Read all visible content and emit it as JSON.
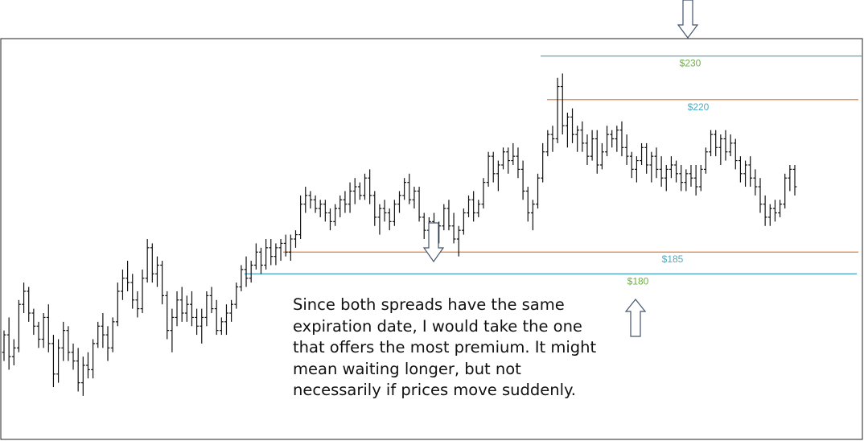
{
  "chart_data": {
    "type": "ohlc",
    "title": "",
    "xlabel": "",
    "ylabel": "",
    "ylim": [
      142,
      234
    ],
    "grid": false,
    "legend": "none",
    "bar_color": "#111111",
    "series": [
      {
        "values": [
          [
            162,
            167,
            160,
            166
          ],
          [
            166,
            170,
            158,
            161
          ],
          [
            161,
            165,
            159,
            163
          ],
          [
            163,
            174,
            162,
            173
          ],
          [
            173,
            178,
            171,
            176
          ],
          [
            176,
            177,
            169,
            171
          ],
          [
            171,
            172,
            166,
            168
          ],
          [
            168,
            169,
            163,
            165
          ],
          [
            165,
            171,
            163,
            170
          ],
          [
            170,
            173,
            162,
            164
          ],
          [
            164,
            166,
            154,
            157
          ],
          [
            157,
            165,
            155,
            163
          ],
          [
            163,
            169,
            160,
            167
          ],
          [
            167,
            168,
            160,
            162
          ],
          [
            162,
            164,
            158,
            160
          ],
          [
            160,
            163,
            153,
            155
          ],
          [
            155,
            161,
            152,
            159
          ],
          [
            159,
            162,
            156,
            158
          ],
          [
            158,
            165,
            156,
            164
          ],
          [
            164,
            169,
            163,
            168
          ],
          [
            168,
            171,
            163,
            166
          ],
          [
            166,
            168,
            160,
            163
          ],
          [
            163,
            170,
            162,
            169
          ],
          [
            169,
            178,
            168,
            176
          ],
          [
            176,
            181,
            174,
            179
          ],
          [
            179,
            183,
            176,
            178
          ],
          [
            178,
            180,
            172,
            174
          ],
          [
            174,
            176,
            170,
            172
          ],
          [
            172,
            181,
            171,
            179
          ],
          [
            179,
            188,
            178,
            186
          ],
          [
            186,
            187,
            178,
            180
          ],
          [
            180,
            184,
            177,
            182
          ],
          [
            182,
            183,
            173,
            175
          ],
          [
            175,
            176,
            165,
            167
          ],
          [
            167,
            172,
            162,
            170
          ],
          [
            170,
            176,
            168,
            174
          ],
          [
            174,
            177,
            169,
            171
          ],
          [
            171,
            175,
            169,
            173
          ],
          [
            173,
            176,
            168,
            170
          ],
          [
            170,
            172,
            166,
            168
          ],
          [
            168,
            172,
            164,
            170
          ],
          [
            170,
            176,
            168,
            175
          ],
          [
            175,
            177,
            171,
            172
          ],
          [
            172,
            174,
            166,
            167
          ],
          [
            167,
            170,
            166,
            169
          ],
          [
            169,
            173,
            166,
            171
          ],
          [
            171,
            174,
            169,
            173
          ],
          [
            173,
            178,
            172,
            177
          ],
          [
            177,
            182,
            176,
            181
          ],
          [
            181,
            184,
            177,
            179
          ],
          [
            179,
            183,
            178,
            182
          ],
          [
            182,
            187,
            181,
            185
          ],
          [
            185,
            186,
            180,
            182
          ],
          [
            182,
            188,
            181,
            186
          ],
          [
            186,
            188,
            182,
            184
          ],
          [
            184,
            187,
            182,
            186
          ],
          [
            186,
            188,
            183,
            187
          ],
          [
            187,
            189,
            184,
            185
          ],
          [
            185,
            189,
            183,
            188
          ],
          [
            188,
            190,
            186,
            189
          ],
          [
            189,
            198,
            188,
            196
          ],
          [
            196,
            200,
            194,
            198
          ],
          [
            198,
            199,
            195,
            197
          ],
          [
            197,
            198,
            194,
            195
          ],
          [
            195,
            197,
            193,
            196
          ],
          [
            196,
            197,
            192,
            194
          ],
          [
            194,
            195,
            190,
            192
          ],
          [
            192,
            196,
            191,
            195
          ],
          [
            195,
            198,
            193,
            197
          ],
          [
            197,
            199,
            194,
            196
          ],
          [
            196,
            201,
            194,
            199
          ],
          [
            199,
            202,
            196,
            200
          ],
          [
            200,
            201,
            197,
            198
          ],
          [
            198,
            203,
            197,
            202
          ],
          [
            202,
            204,
            196,
            198
          ],
          [
            198,
            199,
            191,
            193
          ],
          [
            193,
            196,
            189,
            195
          ],
          [
            195,
            197,
            192,
            194
          ],
          [
            194,
            195,
            190,
            192
          ],
          [
            192,
            197,
            191,
            196
          ],
          [
            196,
            199,
            194,
            198
          ],
          [
            198,
            202,
            197,
            201
          ],
          [
            201,
            203,
            196,
            197
          ],
          [
            197,
            200,
            195,
            199
          ],
          [
            199,
            200,
            192,
            193
          ],
          [
            193,
            194,
            188,
            190
          ],
          [
            190,
            193,
            187,
            192
          ],
          [
            192,
            194,
            188,
            189
          ],
          [
            189,
            192,
            187,
            191
          ],
          [
            191,
            196,
            190,
            195
          ],
          [
            195,
            197,
            190,
            191
          ],
          [
            191,
            194,
            187,
            188
          ],
          [
            188,
            191,
            184,
            190
          ],
          [
            190,
            195,
            189,
            194
          ],
          [
            194,
            198,
            193,
            197
          ],
          [
            197,
            199,
            192,
            194
          ],
          [
            194,
            197,
            193,
            196
          ],
          [
            196,
            202,
            195,
            201
          ],
          [
            201,
            208,
            200,
            207
          ],
          [
            207,
            208,
            201,
            203
          ],
          [
            203,
            206,
            199,
            205
          ],
          [
            205,
            209,
            204,
            208
          ],
          [
            208,
            209,
            203,
            206
          ],
          [
            206,
            210,
            205,
            207
          ],
          [
            207,
            209,
            202,
            204
          ],
          [
            204,
            206,
            197,
            199
          ],
          [
            199,
            200,
            192,
            194
          ],
          [
            194,
            197,
            190,
            196
          ],
          [
            196,
            203,
            195,
            202
          ],
          [
            202,
            210,
            201,
            208
          ],
          [
            208,
            213,
            207,
            212
          ],
          [
            212,
            214,
            208,
            211
          ],
          [
            211,
            225,
            210,
            223
          ],
          [
            223,
            226,
            212,
            214
          ],
          [
            214,
            217,
            209,
            216
          ],
          [
            216,
            218,
            210,
            212
          ],
          [
            212,
            214,
            208,
            213
          ],
          [
            213,
            215,
            208,
            210
          ],
          [
            210,
            212,
            205,
            207
          ],
          [
            207,
            213,
            206,
            211
          ],
          [
            211,
            213,
            203,
            205
          ],
          [
            205,
            210,
            204,
            208
          ],
          [
            208,
            214,
            207,
            212
          ],
          [
            212,
            213,
            209,
            211
          ],
          [
            211,
            214,
            208,
            213
          ],
          [
            213,
            215,
            207,
            209
          ],
          [
            209,
            212,
            205,
            207
          ],
          [
            207,
            208,
            202,
            204
          ],
          [
            204,
            207,
            201,
            206
          ],
          [
            206,
            210,
            205,
            209
          ],
          [
            209,
            210,
            203,
            205
          ],
          [
            205,
            208,
            201,
            207
          ],
          [
            207,
            209,
            202,
            204
          ],
          [
            204,
            207,
            200,
            202
          ],
          [
            202,
            205,
            199,
            204
          ],
          [
            204,
            207,
            202,
            205
          ],
          [
            205,
            206,
            201,
            203
          ],
          [
            203,
            205,
            199,
            201
          ],
          [
            201,
            204,
            199,
            203
          ],
          [
            203,
            205,
            200,
            202
          ],
          [
            202,
            205,
            198,
            200
          ],
          [
            200,
            205,
            199,
            204
          ],
          [
            204,
            209,
            203,
            208
          ],
          [
            208,
            213,
            207,
            212
          ],
          [
            212,
            213,
            207,
            209
          ],
          [
            209,
            212,
            205,
            211
          ],
          [
            211,
            213,
            206,
            208
          ],
          [
            208,
            212,
            207,
            210
          ],
          [
            210,
            211,
            204,
            206
          ],
          [
            206,
            207,
            201,
            203
          ],
          [
            203,
            206,
            200,
            205
          ],
          [
            205,
            207,
            200,
            202
          ],
          [
            202,
            204,
            198,
            200
          ],
          [
            200,
            202,
            194,
            196
          ],
          [
            196,
            198,
            191,
            193
          ],
          [
            193,
            196,
            191,
            195
          ],
          [
            195,
            197,
            192,
            194
          ],
          [
            194,
            197,
            193,
            196
          ],
          [
            196,
            203,
            195,
            202
          ],
          [
            202,
            205,
            199,
            204
          ],
          [
            204,
            205,
            198,
            200
          ]
        ]
      }
    ],
    "reference_lines": [
      {
        "value": 230,
        "label": "$230",
        "line_color": "#4bacc6",
        "label_color": "#70ad47"
      },
      {
        "value": 220,
        "label": "$220",
        "line_color": "#ed7d31",
        "label_color": "#4bacc6"
      },
      {
        "value": 185,
        "label": "$185",
        "line_color": "#ed7d31",
        "label_color": "#4bacc6"
      },
      {
        "value": 180,
        "label": "$180",
        "line_color": "#4bacc6",
        "label_color": "#70ad47"
      }
    ],
    "arrows": [
      {
        "name": "down-arrow-top"
      },
      {
        "name": "down-arrow-mid"
      },
      {
        "name": "up-arrow-bottom"
      }
    ],
    "annotation": "Since both spreads have the same expiration date, I would take the one that offers the most premium. It might mean waiting longer, but not necessarily if prices move suddenly."
  }
}
